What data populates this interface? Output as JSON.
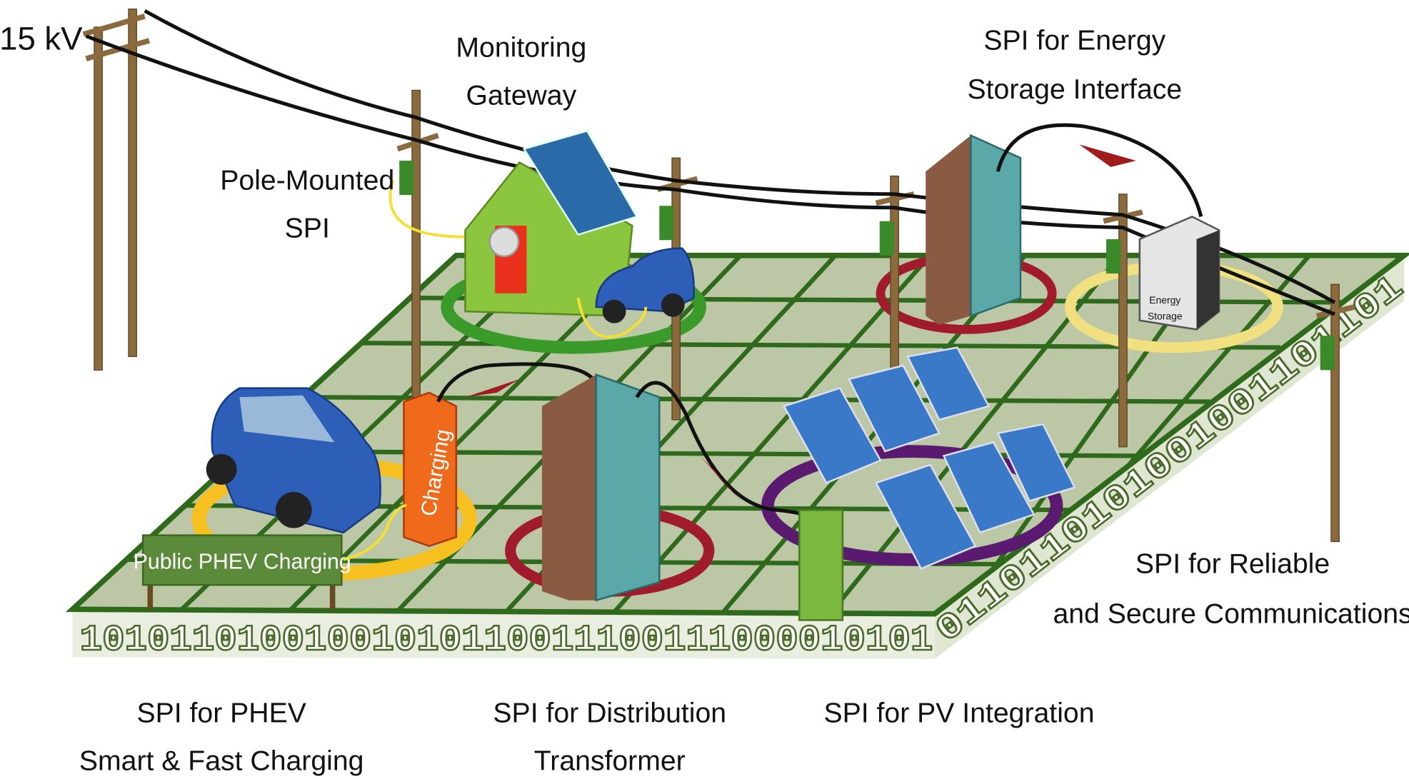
{
  "voltage_label": "15 kV",
  "labels": {
    "monitoring_gateway": [
      "Monitoring",
      "Gateway"
    ],
    "energy_storage_interface": [
      "SPI for Energy",
      "Storage Interface"
    ],
    "pole_mounted": [
      "Pole-Mounted",
      "SPI"
    ],
    "reliable_communications": [
      "SPI for Reliable",
      "and Secure Communications"
    ],
    "phev_charging": [
      "SPI for PHEV",
      "Smart & Fast Charging"
    ],
    "distribution_transformer": [
      "SPI for Distribution",
      "Transformer"
    ],
    "pv_integration": [
      "SPI for PV Integration"
    ]
  },
  "energy_storage_box": [
    "Energy",
    "Storage"
  ],
  "charging_station": "Charging",
  "public_sign": "Public PHEV Charging",
  "binary_front": "10101101001001010110011100111000010101",
  "binary_side": "0110110101001001101101"
}
